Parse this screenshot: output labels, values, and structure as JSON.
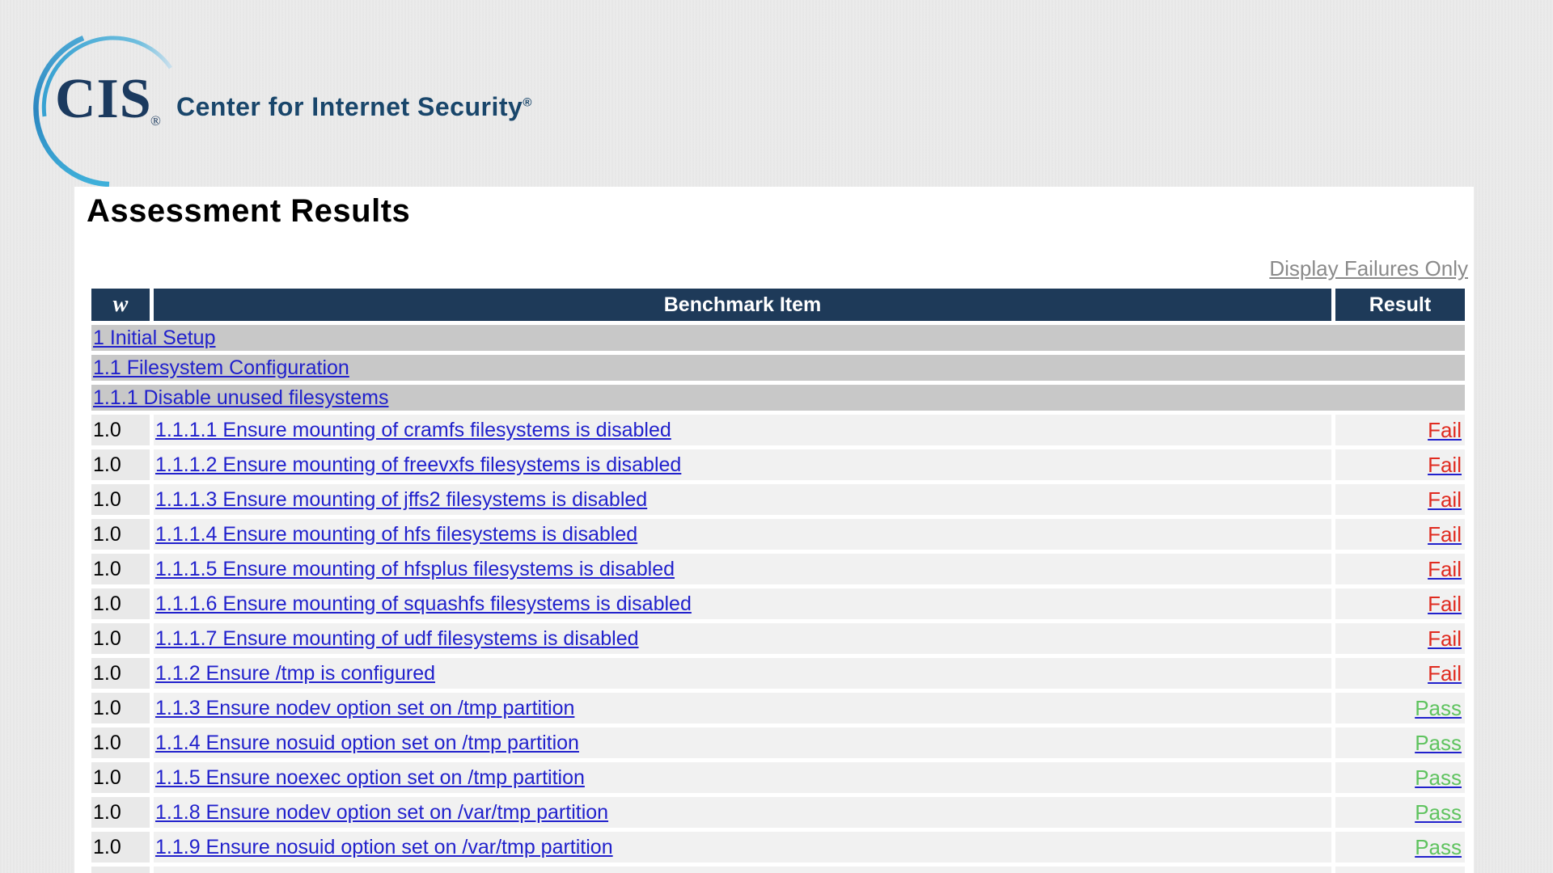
{
  "logo": {
    "monogram": "CIS",
    "registered": "®",
    "brand": "Center for Internet Security",
    "brand_registered": "®"
  },
  "page": {
    "title": "Assessment Results"
  },
  "controls": {
    "display_failures_only": "Display Failures Only"
  },
  "colors": {
    "header_bg": "#1e3a59",
    "section_row_bg": "#c8c8c8",
    "link_blue": "#2121cc",
    "fail_red": "#e02b20",
    "pass_green": "#5fc35f",
    "brand_navy": "#19466b"
  },
  "table": {
    "headers": {
      "weight": "w",
      "item": "Benchmark Item",
      "result": "Result"
    },
    "rows": [
      {
        "type": "section",
        "label": "1 Initial Setup"
      },
      {
        "type": "section",
        "label": "1.1 Filesystem Configuration"
      },
      {
        "type": "section",
        "label": "1.1.1 Disable unused filesystems"
      },
      {
        "type": "item",
        "weight": "1.0",
        "title": "1.1.1.1 Ensure mounting of cramfs filesystems is disabled",
        "result": "Fail"
      },
      {
        "type": "item",
        "weight": "1.0",
        "title": "1.1.1.2 Ensure mounting of freevxfs filesystems is disabled",
        "result": "Fail"
      },
      {
        "type": "item",
        "weight": "1.0",
        "title": "1.1.1.3 Ensure mounting of jffs2 filesystems is disabled",
        "result": "Fail"
      },
      {
        "type": "item",
        "weight": "1.0",
        "title": "1.1.1.4 Ensure mounting of hfs filesystems is disabled",
        "result": "Fail"
      },
      {
        "type": "item",
        "weight": "1.0",
        "title": "1.1.1.5 Ensure mounting of hfsplus filesystems is disabled",
        "result": "Fail"
      },
      {
        "type": "item",
        "weight": "1.0",
        "title": "1.1.1.6 Ensure mounting of squashfs filesystems is disabled",
        "result": "Fail"
      },
      {
        "type": "item",
        "weight": "1.0",
        "title": "1.1.1.7 Ensure mounting of udf filesystems is disabled",
        "result": "Fail"
      },
      {
        "type": "item",
        "weight": "1.0",
        "title": "1.1.2 Ensure /tmp is configured",
        "result": "Fail"
      },
      {
        "type": "item",
        "weight": "1.0",
        "title": "1.1.3 Ensure nodev option set on /tmp partition",
        "result": "Pass"
      },
      {
        "type": "item",
        "weight": "1.0",
        "title": "1.1.4 Ensure nosuid option set on /tmp partition",
        "result": "Pass"
      },
      {
        "type": "item",
        "weight": "1.0",
        "title": "1.1.5 Ensure noexec option set on /tmp partition",
        "result": "Pass"
      },
      {
        "type": "item",
        "weight": "1.0",
        "title": "1.1.8 Ensure nodev option set on /var/tmp partition",
        "result": "Pass"
      },
      {
        "type": "item",
        "weight": "1.0",
        "title": "1.1.9 Ensure nosuid option set on /var/tmp partition",
        "result": "Pass"
      },
      {
        "type": "item",
        "weight": "",
        "title": "",
        "result": ""
      }
    ]
  }
}
